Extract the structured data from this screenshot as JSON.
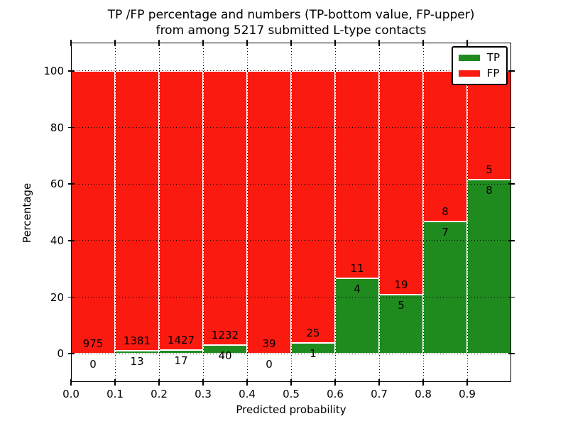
{
  "chart": {
    "title_line1": "TP /FP percentage and numbers (TP-bottom value, FP-upper)",
    "title_line2": "from among 5217 submitted L-type contacts",
    "xlabel": "Predicted probability",
    "ylabel": "Percentage"
  },
  "chart_data": {
    "type": "bar",
    "subtype": "stacked-100-percent-histogram",
    "title": "TP /FP percentage and numbers (TP-bottom value, FP-upper) from among 5217 submitted L-type contacts",
    "xlabel": "Predicted probability",
    "ylabel": "Percentage",
    "bin_start": [
      0.0,
      0.1,
      0.2,
      0.3,
      0.4,
      0.5,
      0.6,
      0.7,
      0.8,
      0.9
    ],
    "bin_width": 0.1,
    "series": [
      {
        "name": "TP",
        "color": "#1f8b1f",
        "counts": [
          0,
          13,
          17,
          40,
          0,
          1,
          4,
          5,
          7,
          8
        ]
      },
      {
        "name": "FP",
        "color": "#fb1a10",
        "counts": [
          975,
          1381,
          1427,
          1232,
          39,
          25,
          11,
          19,
          8,
          5
        ]
      }
    ],
    "tp_percent": [
      0,
      0.93,
      1.18,
      3.14,
      0,
      3.85,
      26.67,
      20.83,
      46.67,
      61.54
    ],
    "total_contacts": 5217,
    "x_ticks": [
      "0.0",
      "0.1",
      "0.2",
      "0.3",
      "0.4",
      "0.5",
      "0.6",
      "0.7",
      "0.8",
      "0.9"
    ],
    "y_ticks": [
      "0",
      "20",
      "40",
      "60",
      "80",
      "100"
    ],
    "xlim": [
      0.0,
      1.0
    ],
    "ylim": [
      -10,
      110
    ],
    "grid": "dotted",
    "legend_position": "upper right"
  },
  "legend": {
    "items": [
      {
        "label": "TP",
        "color": "#1f8b1f"
      },
      {
        "label": "FP",
        "color": "#fb1a10"
      }
    ]
  }
}
